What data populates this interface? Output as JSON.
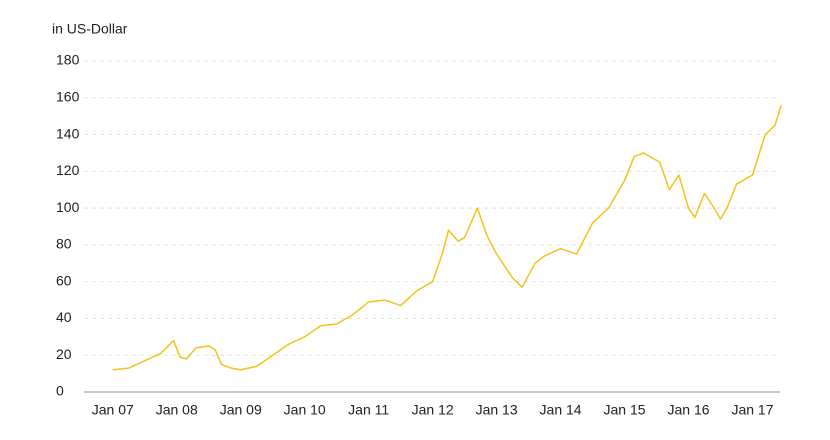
{
  "chart_data": {
    "type": "line",
    "ylabel": "in US-Dollar",
    "color": "#f2c31b",
    "x": [
      7.0,
      7.25,
      7.5,
      7.75,
      7.95,
      8.05,
      8.15,
      8.3,
      8.5,
      8.6,
      8.7,
      8.85,
      9.0,
      9.25,
      9.5,
      9.75,
      10.0,
      10.25,
      10.5,
      10.75,
      11.0,
      11.25,
      11.5,
      11.75,
      12.0,
      12.15,
      12.25,
      12.4,
      12.5,
      12.7,
      12.85,
      13.0,
      13.25,
      13.4,
      13.6,
      13.75,
      14.0,
      14.25,
      14.5,
      14.75,
      15.0,
      15.15,
      15.3,
      15.45,
      15.55,
      15.7,
      15.85,
      16.0,
      16.1,
      16.25,
      16.4,
      16.5,
      16.6,
      16.75,
      17.0,
      17.2,
      17.35,
      17.45
    ],
    "values": [
      12,
      13,
      17,
      21,
      28,
      19,
      18,
      24,
      25,
      23,
      15,
      13,
      12,
      14,
      20,
      26,
      30,
      36,
      37,
      42,
      49,
      50,
      47,
      55,
      60,
      75,
      88,
      82,
      84,
      100,
      85,
      75,
      62,
      57,
      70,
      74,
      78,
      75,
      92,
      100,
      115,
      128,
      130,
      127,
      125,
      110,
      118,
      100,
      95,
      108,
      100,
      94,
      100,
      113,
      118,
      140,
      145,
      156
    ],
    "xlim": [
      6.55,
      17.43
    ],
    "xticks": [
      {
        "value": 7,
        "label": "Jan 07"
      },
      {
        "value": 8,
        "label": "Jan 08"
      },
      {
        "value": 9,
        "label": "Jan 09"
      },
      {
        "value": 10,
        "label": "Jan 10"
      },
      {
        "value": 11,
        "label": "Jan 11"
      },
      {
        "value": 12,
        "label": "Jan 12"
      },
      {
        "value": 13,
        "label": "Jan 13"
      },
      {
        "value": 14,
        "label": "Jan 14"
      },
      {
        "value": 15,
        "label": "Jan 15"
      },
      {
        "value": 16,
        "label": "Jan 16"
      },
      {
        "value": 17,
        "label": "Jan 17"
      }
    ],
    "ylim": [
      0,
      180
    ],
    "yticks": [
      0,
      20,
      40,
      60,
      80,
      100,
      120,
      140,
      160,
      180
    ],
    "grid": true
  }
}
